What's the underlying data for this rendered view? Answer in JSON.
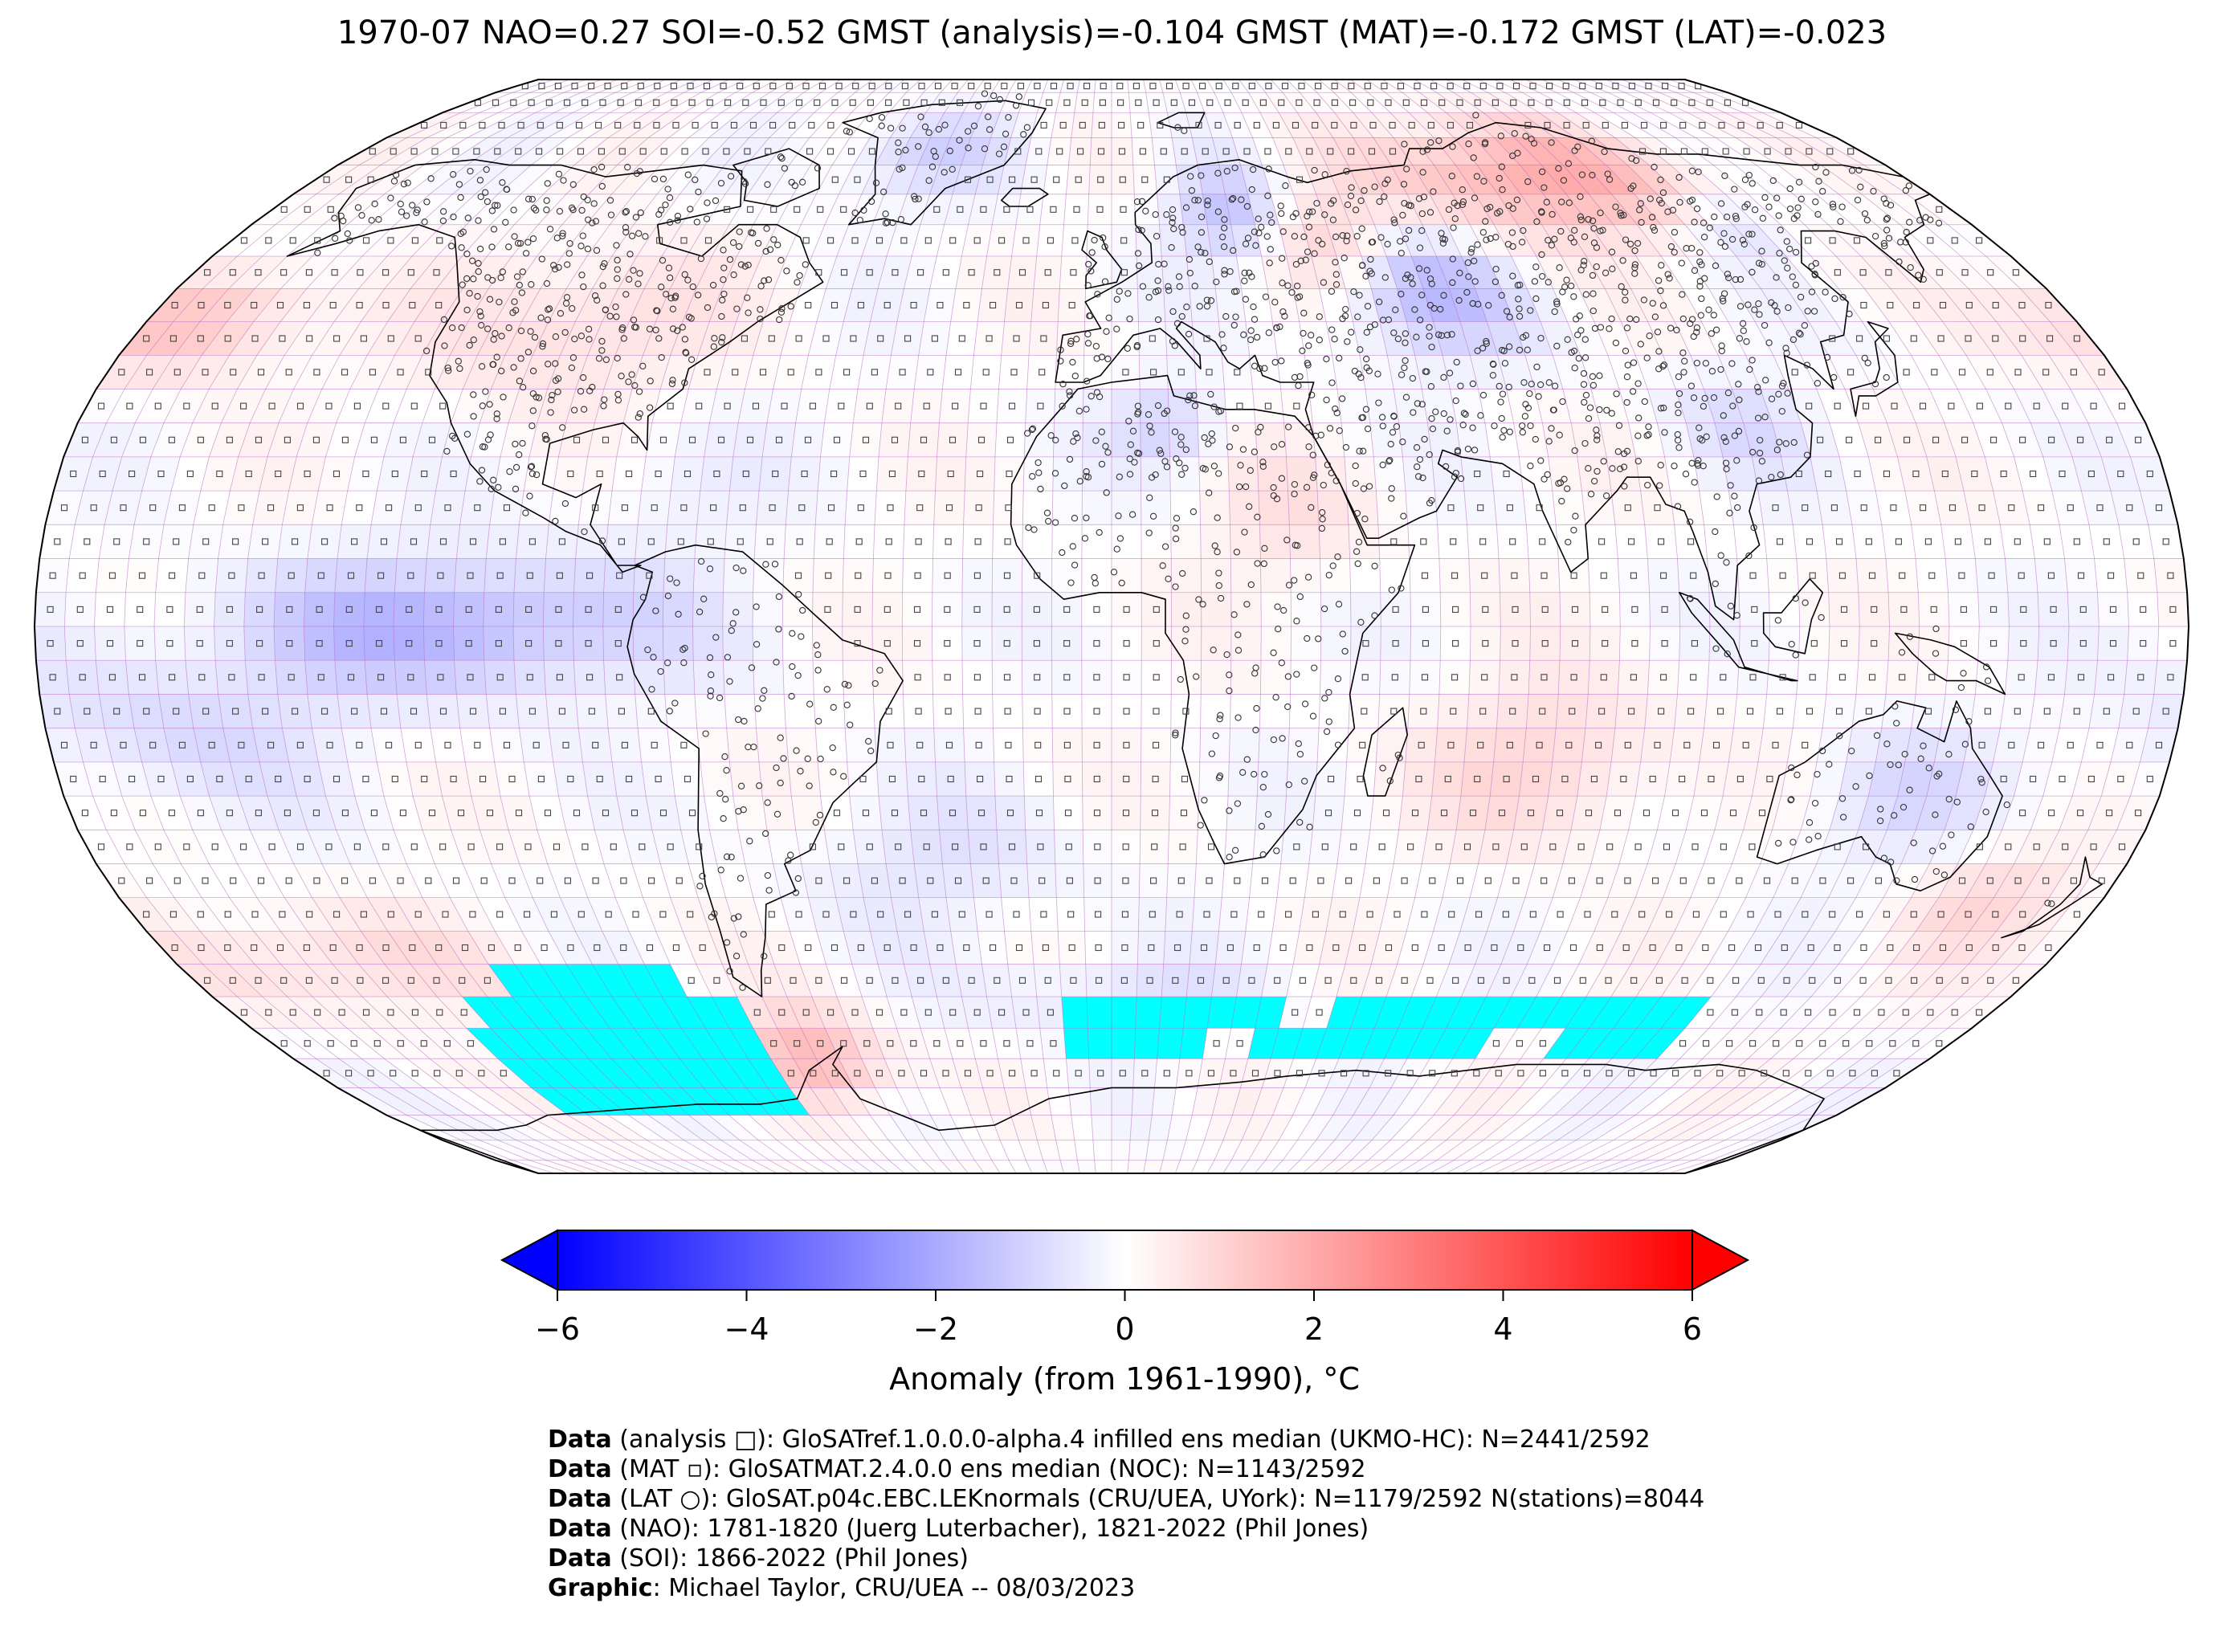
{
  "title": "1970-07 NAO=0.27 SOI=-0.52 GMST (analysis)=-0.104 GMST (MAT)=-0.172 GMST (LAT)=-0.023",
  "colorbar": {
    "label": "Anomaly (from 1961-1990), °C",
    "ticks": [
      "−6",
      "−4",
      "−2",
      "0",
      "2",
      "4",
      "6"
    ],
    "tick_values": [
      -6,
      -4,
      -2,
      0,
      2,
      4,
      6
    ],
    "range": [
      -6,
      6
    ],
    "extend": "both",
    "colormap": "bwr",
    "color_min": "#0000ff",
    "color_mid": "#ffffff",
    "color_max": "#ff0000"
  },
  "map": {
    "projection": "robinson",
    "grid": "5-degree",
    "missing_ice_color": "#00ffff",
    "coastline_color": "#000000",
    "grid_line_color": "#b060c0",
    "anomaly_regions": [
      {
        "name": "north-siberia",
        "value": 2.0
      },
      {
        "name": "central-asia",
        "value": -1.6
      },
      {
        "name": "scandinavia",
        "value": -1.4
      },
      {
        "name": "eastern-europe",
        "value": 1.2
      },
      {
        "name": "north-america",
        "value": 0.9
      },
      {
        "name": "greenland",
        "value": -1.0
      },
      {
        "name": "tropical-east-pacific",
        "value": -1.8
      },
      {
        "name": "antarctic-peninsula",
        "value": 1.8
      },
      {
        "name": "indian-ocean-south",
        "value": 1.0
      },
      {
        "name": "australia",
        "value": -0.8
      },
      {
        "name": "north-pacific",
        "value": 1.4
      },
      {
        "name": "south-pacific-west",
        "value": -0.8
      }
    ]
  },
  "credits": [
    {
      "bold": "Data",
      "text": " (analysis □): GloSATref.1.0.0.0-alpha.4 infilled ens median (UKMO-HC): N=2441/2592"
    },
    {
      "bold": "Data",
      "text": " (MAT ▫): GloSATMAT.2.4.0.0 ens median (NOC): N=1143/2592"
    },
    {
      "bold": "Data",
      "text": " (LAT ○): GloSAT.p04c.EBC.LEKnormals (CRU/UEA, UYork): N=1179/2592 N(stations)=8044"
    },
    {
      "bold": "Data",
      "text": " (NAO): 1781-1820 (Juerg Luterbacher), 1821-2022 (Phil Jones)"
    },
    {
      "bold": "Data",
      "text": " (SOI): 1866-2022 (Phil Jones)"
    },
    {
      "bold": "Graphic",
      "text": ": Michael Taylor, CRU/UEA -- 08/03/2023"
    }
  ]
}
